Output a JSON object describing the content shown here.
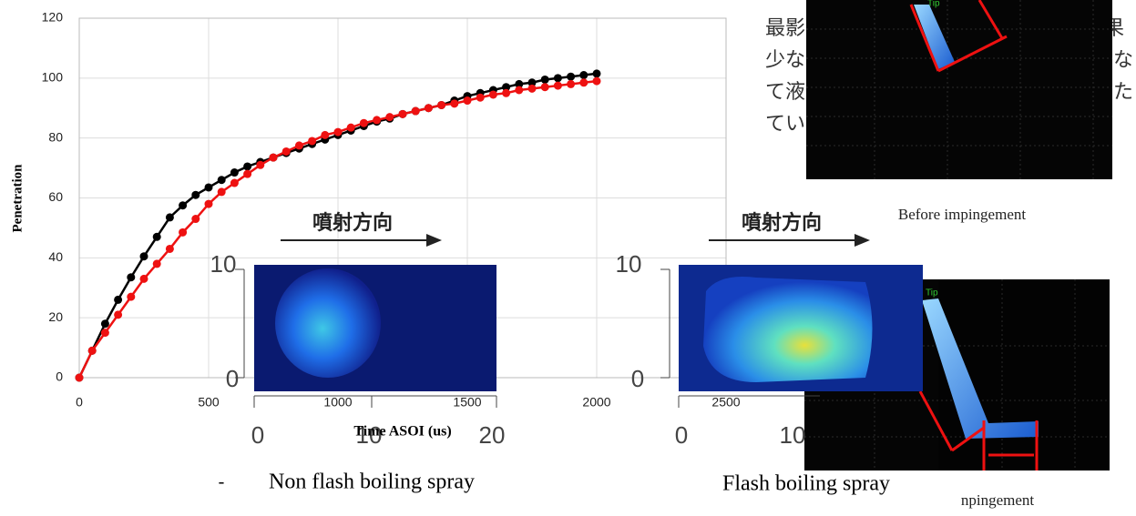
{
  "chart_data": {
    "type": "line",
    "x_label": "Time ASOI (us)",
    "y_label": "Penetration",
    "x": [
      0,
      50,
      100,
      150,
      200,
      250,
      300,
      350,
      400,
      450,
      500,
      550,
      600,
      650,
      700,
      750,
      800,
      850,
      900,
      950,
      1000,
      1050,
      1100,
      1150,
      1200,
      1250,
      1300,
      1350,
      1400,
      1450,
      1500,
      1550,
      1600,
      1650,
      1700,
      1750,
      1800,
      1850,
      1900,
      1950,
      2000
    ],
    "series": [
      {
        "color": "#000000",
        "values": [
          0,
          9,
          18,
          26,
          33.5,
          40.5,
          47,
          53.5,
          57.5,
          61,
          63.5,
          66,
          68.5,
          70.5,
          72,
          73.5,
          75,
          76.5,
          78,
          79.5,
          81,
          82.5,
          84,
          85.5,
          86.5,
          88,
          89,
          90,
          91,
          92.5,
          94,
          95,
          96,
          97,
          98,
          98.5,
          99.5,
          100,
          100.5,
          101,
          101.5
        ]
      },
      {
        "color": "#ee1111",
        "values": [
          0,
          9,
          15,
          21,
          27,
          33,
          38,
          43,
          48.5,
          53,
          58,
          62,
          65,
          68,
          71,
          73.5,
          75.5,
          77.5,
          79,
          81,
          82,
          83.5,
          85,
          86,
          87,
          88,
          89,
          90,
          91,
          91.5,
          92.5,
          93.5,
          94.5,
          95,
          96,
          96.5,
          97,
          97.5,
          98,
          98.5,
          99
        ]
      }
    ],
    "xlim": [
      0,
      2500
    ],
    "xticks": [
      0,
      500,
      1000,
      1500,
      2000,
      2500
    ],
    "ylim": [
      0,
      120
    ],
    "yticks": [
      0,
      20,
      40,
      60,
      80,
      100,
      120
    ],
    "grid": true
  },
  "overlays": {
    "direction_1": "噴射方向",
    "direction_2": "噴射方向",
    "inset_1_y": [
      "10",
      "0"
    ],
    "inset_1_x": [
      "0",
      "10",
      "20"
    ],
    "inset_2_y": [
      "10",
      "0"
    ],
    "inset_2_x": [
      "0",
      "10"
    ],
    "caption_1_dash": "-",
    "caption_1": "Non flash boiling spray",
    "caption_2": "Flash boiling spray",
    "before": "Before impingement",
    "after": "npingement",
    "jp_text": [
      "最影",
      "果",
      "少な",
      "な",
      "て液",
      "た",
      "てい"
    ],
    "tip_1": "Tip",
    "tip_2": "Tip"
  }
}
